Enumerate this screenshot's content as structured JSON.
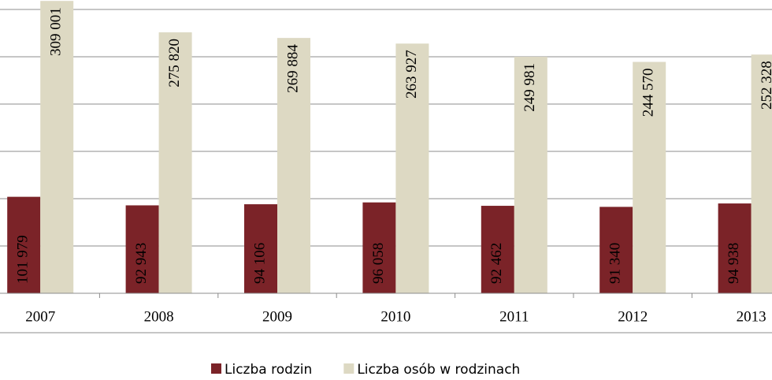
{
  "chart_data": {
    "type": "bar",
    "categories": [
      "2007",
      "2008",
      "2009",
      "2010",
      "2011",
      "2012",
      "2013"
    ],
    "series": [
      {
        "name": "Liczba rodzin",
        "color": "#7b2328",
        "values": [
          101979,
          92943,
          94106,
          96058,
          92462,
          91340,
          94938
        ],
        "value_labels": [
          "101 979",
          "92 943",
          "94 106",
          "96 058",
          "92 462",
          "91 340",
          "94 938"
        ]
      },
      {
        "name": "Liczba osób w rodzinach",
        "color": "#ddd9c3",
        "values": [
          309001,
          275820,
          269884,
          263927,
          249981,
          244570,
          252328
        ],
        "value_labels": [
          "309 001",
          "275 820",
          "269 884",
          "263 927",
          "249 981",
          "244 570",
          "252 328"
        ]
      }
    ],
    "ylim": [
      0,
      310000
    ],
    "yticks": [
      50000,
      100000,
      150000,
      200000,
      250000,
      300000
    ],
    "grid": true
  }
}
